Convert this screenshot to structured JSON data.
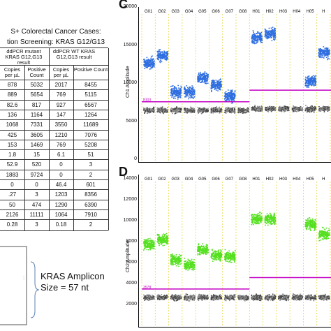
{
  "table": {
    "title_line1": "S+ Colorectal Cancer Cases:",
    "title_line2": "tion Screening: KRAS G12/G13",
    "head_mut": "ddPCR mutant KRAS G12,G13 result",
    "head_wt": "ddPCR WT KRAS G12,G13 result",
    "sub": [
      "Copies per µL",
      "Positive Count",
      "Copies per µL",
      "Positive Count"
    ],
    "rows": [
      [
        "878",
        "5032",
        "2017",
        "8455"
      ],
      [
        "889",
        "5654",
        "769",
        "5115"
      ],
      [
        "82.6",
        "817",
        "927",
        "6567"
      ],
      [
        "136",
        "1164",
        "147",
        "1264"
      ],
      [
        "1068",
        "7331",
        "3550",
        "11689"
      ],
      [
        "425",
        "3605",
        "1210",
        "7076"
      ],
      [
        "153",
        "1469",
        "769",
        "5208"
      ],
      [
        "1.8",
        "15",
        "6.1",
        "51"
      ],
      [
        "52.9",
        "520",
        "0",
        "3"
      ],
      [
        "1883",
        "9724",
        "0",
        "2"
      ],
      [
        "0",
        "0",
        "46.4",
        "601"
      ],
      [
        ".27",
        "3",
        "1203",
        "8356"
      ],
      [
        "50",
        "474",
        "1290",
        "6390"
      ],
      [
        "2126",
        "11111",
        "1064",
        "7910"
      ],
      [
        "0.28",
        "3",
        "0.18",
        "2"
      ]
    ]
  },
  "amplicon": {
    "line1": "KRAS Amplicon",
    "line2": "Size = 57 nt"
  },
  "panel_c": {
    "letter": "C",
    "ylabel": "Ch1 Amplitude",
    "yticks": [
      "20000",
      "15000",
      "10000",
      "5000",
      "0"
    ],
    "wells": [
      "G01",
      "G02",
      "G03",
      "G04",
      "G05",
      "G06",
      "G07",
      "G08",
      "H01",
      "H02",
      "H03",
      "H04",
      "H05",
      "H"
    ],
    "threshold_label": "8103",
    "color": "#2f6ee0"
  },
  "panel_d": {
    "letter": "D",
    "ylabel": "Ch2 Amplitude",
    "yticks": [
      "14000",
      "12000",
      "10000",
      "8000",
      "6000",
      "4000",
      "2000"
    ],
    "wells": [
      "G01",
      "G02",
      "G03",
      "G04",
      "G05",
      "G06",
      "G07",
      "G08",
      "H01",
      "H02",
      "H03",
      "H04",
      "H05",
      "H"
    ],
    "threshold_label": "3578",
    "color": "#55e020"
  },
  "chart_data": [
    {
      "type": "scatter",
      "title": "",
      "ylabel": "Ch1 Amplitude",
      "ylim": [
        0,
        20000
      ],
      "categories": [
        "G01",
        "G02",
        "G03",
        "G04",
        "G05",
        "G06",
        "G07",
        "G08",
        "H01",
        "H02",
        "H03",
        "H04",
        "H05",
        "H"
      ],
      "threshold": 8103,
      "positive_center": [
        13500,
        14500,
        9500,
        9500,
        11500,
        10500,
        9000,
        null,
        17000,
        17500,
        null,
        null,
        11000,
        15000
      ],
      "negative_center": [
        7000,
        7000,
        7000,
        7000,
        7000,
        7000,
        7000,
        7000,
        7200,
        7200,
        7200,
        7200,
        7200,
        7200
      ]
    },
    {
      "type": "scatter",
      "title": "",
      "ylabel": "Ch2 Amplitude",
      "ylim": [
        0,
        14000
      ],
      "categories": [
        "G01",
        "G02",
        "G03",
        "G04",
        "G05",
        "G06",
        "G07",
        "G08",
        "H01",
        "H02",
        "H03",
        "H04",
        "H05",
        "H"
      ],
      "threshold": 3578,
      "positive_center": [
        8000,
        8500,
        6500,
        6000,
        7500,
        7000,
        6800,
        null,
        10500,
        10500,
        null,
        null,
        10000,
        9000
      ],
      "negative_center": [
        2800,
        2800,
        2800,
        2800,
        2800,
        2800,
        2800,
        2800,
        2800,
        2800,
        2800,
        2800,
        2800,
        2800
      ]
    }
  ]
}
